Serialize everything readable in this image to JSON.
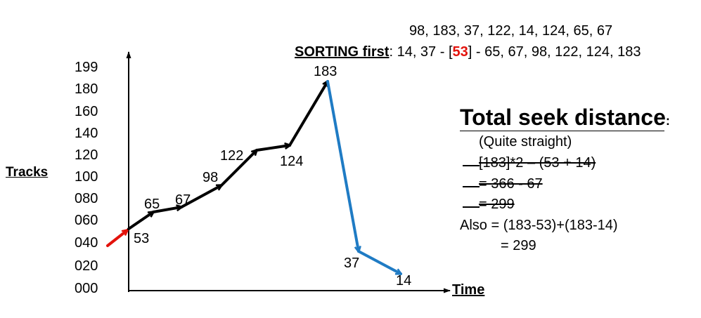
{
  "header": {
    "sequence": "98, 183, 37, 122, 14, 124, 65, 67",
    "sorting_label": "SORTING first",
    "sorting_before": ": 14, 37 - [",
    "sorting_head": "53",
    "sorting_after": "] - 65, 67, 98, 122, 124, 183"
  },
  "axes": {
    "ylabel": "Tracks",
    "xlabel": "Time",
    "yticks": [
      "199",
      "180",
      "160",
      "140",
      "120",
      "100",
      "080",
      "060",
      "040",
      "020",
      "000"
    ]
  },
  "total_seek": {
    "title": "Total seek distance",
    "colon": ":",
    "lines": [
      {
        "text": "(Quite straight)",
        "strike": false
      },
      {
        "text": "[183]*2 – (53 + 14)",
        "strike": true
      },
      {
        "text": "= 366 - 67",
        "strike": true
      },
      {
        "text": "= 299",
        "strike": true
      },
      {
        "text": "Also = (183-53)+(183-14)",
        "strike": false
      },
      {
        "text": "= 299",
        "strike": false
      }
    ]
  },
  "colors": {
    "start_arrow": "#e3120b",
    "up_path": "#000000",
    "down_path": "#1f7bc4"
  },
  "chart_data": {
    "type": "line",
    "head_start": 53,
    "series": [
      {
        "values": [
          53,
          65,
          67,
          98,
          122,
          124,
          183
        ]
      },
      {
        "values": [
          183,
          37,
          14
        ]
      }
    ],
    "point_labels": [
      "53",
      "65",
      "67",
      "98",
      "122",
      "124",
      "183",
      "37",
      "14"
    ]
  }
}
